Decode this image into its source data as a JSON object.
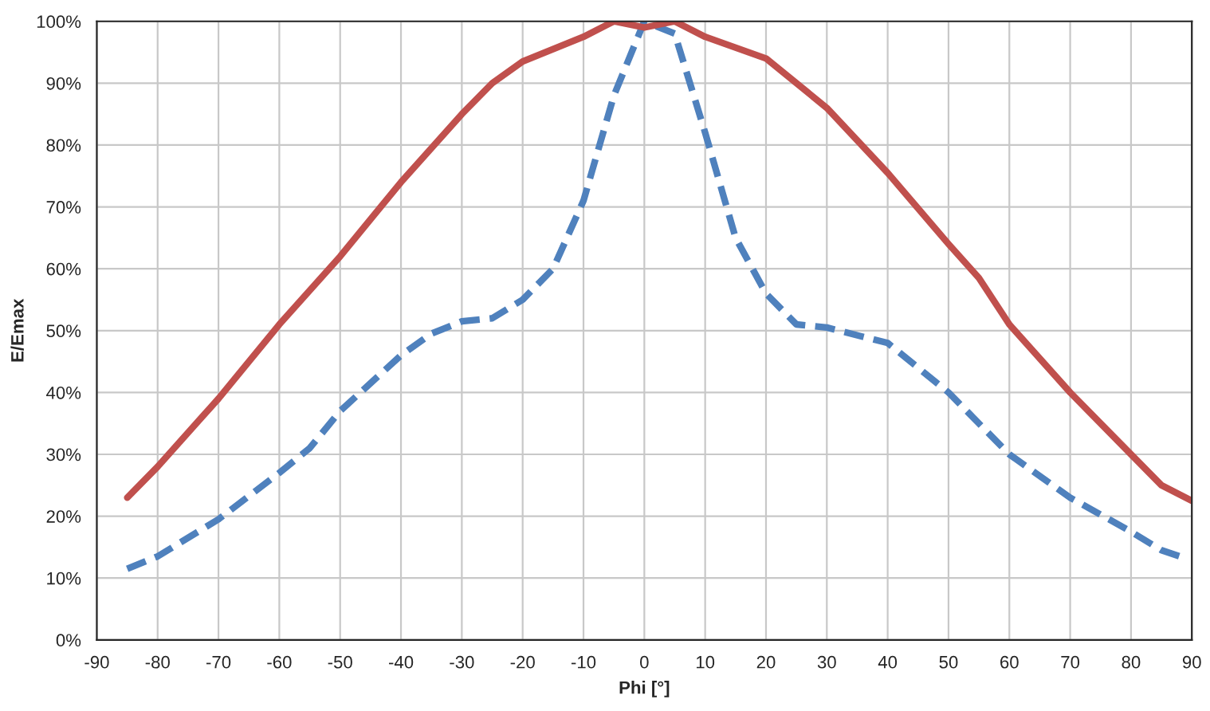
{
  "chart_data": {
    "type": "line",
    "xlabel": "Phi [°]",
    "ylabel": "E/Emax",
    "grid": true,
    "marker": "none",
    "xlim": [
      -90,
      90
    ],
    "xticks": [
      -90,
      -80,
      -70,
      -60,
      -50,
      -40,
      -30,
      -20,
      -10,
      0,
      10,
      20,
      30,
      40,
      50,
      60,
      70,
      80,
      90
    ],
    "ylim": [
      0,
      100
    ],
    "yticks": [
      {
        "value": 0,
        "label": "0%"
      },
      {
        "value": 10,
        "label": "10%"
      },
      {
        "value": 20,
        "label": "20%"
      },
      {
        "value": 30,
        "label": "30%"
      },
      {
        "value": 40,
        "label": "40%"
      },
      {
        "value": 50,
        "label": "50%"
      },
      {
        "value": 60,
        "label": "60%"
      },
      {
        "value": 70,
        "label": "70%"
      },
      {
        "value": 80,
        "label": "80%"
      },
      {
        "value": 90,
        "label": "90%"
      },
      {
        "value": 100,
        "label": "100%"
      }
    ],
    "series": [
      {
        "color": "#4f81bd",
        "line_style": "dashed",
        "x": [
          -85,
          -80,
          -70,
          -60,
          -55,
          -50,
          -40,
          -35,
          -30,
          -25,
          -20,
          -15,
          -10,
          -5,
          0,
          5,
          10,
          15,
          20,
          25,
          30,
          40,
          50,
          60,
          70,
          80,
          85,
          88
        ],
        "values": [
          11.5,
          13.5,
          19.5,
          27,
          31,
          37,
          46,
          49.5,
          51.5,
          52,
          55,
          60,
          71,
          88,
          100,
          98,
          82,
          65,
          56,
          51,
          50.5,
          48,
          40,
          30,
          23,
          17.5,
          14.5,
          13.5
        ]
      },
      {
        "color": "#c0504d",
        "line_style": "solid",
        "x": [
          -85,
          -80,
          -70,
          -60,
          -50,
          -40,
          -30,
          -25,
          -20,
          -10,
          -5,
          0,
          5,
          10,
          20,
          30,
          40,
          50,
          55,
          60,
          70,
          80,
          85,
          90
        ],
        "values": [
          23,
          28,
          39,
          51,
          62,
          74,
          85,
          90,
          93.5,
          97.5,
          100,
          99,
          100,
          97.5,
          94,
          86,
          75.5,
          64,
          58.5,
          51,
          40,
          30,
          25,
          22.5
        ]
      }
    ]
  }
}
